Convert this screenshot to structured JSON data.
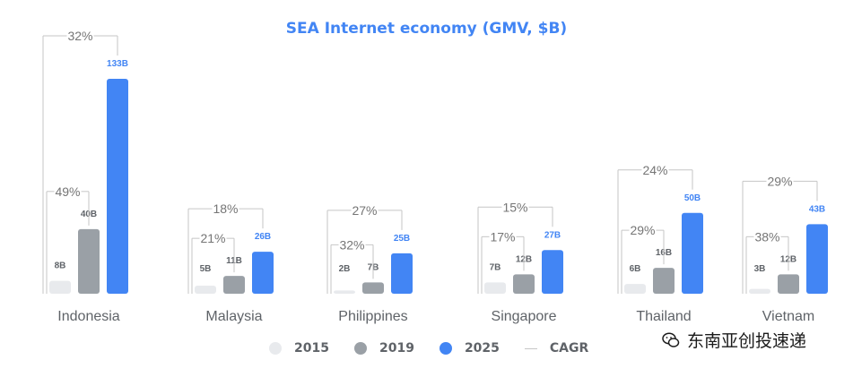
{
  "chart_data": {
    "type": "bar",
    "title": "SEA Internet economy (GMV, $B)",
    "xlabel": "",
    "ylabel": "",
    "ylim": [
      0,
      140
    ],
    "grid": false,
    "legend_position": "bottom",
    "categories": [
      "Indonesia",
      "Malaysia",
      "Philippines",
      "Singapore",
      "Thailand",
      "Vietnam"
    ],
    "series": [
      {
        "name": "2015",
        "values": [
          8,
          5,
          2,
          7,
          6,
          3
        ],
        "labels": [
          "8B",
          "5B",
          "2B",
          "7B",
          "6B",
          "3B"
        ],
        "color": "#e8eaed"
      },
      {
        "name": "2019",
        "values": [
          40,
          11,
          7,
          12,
          16,
          12
        ],
        "labels": [
          "40B",
          "11B",
          "7B",
          "12B",
          "16B",
          "12B"
        ],
        "color": "#9aa0a6"
      },
      {
        "name": "2025",
        "values": [
          133,
          26,
          25,
          27,
          50,
          43
        ],
        "labels": [
          "133B",
          "26B",
          "25B",
          "27B",
          "50B",
          "43B"
        ],
        "color": "#4285f4"
      }
    ],
    "cagr": {
      "name": "CAGR",
      "2015_2019": [
        "49%",
        "21%",
        "32%",
        "17%",
        "29%",
        "38%"
      ],
      "2015_2025": [
        "32%",
        "18%",
        "27%",
        "15%",
        "24%",
        "29%"
      ]
    },
    "colors": {
      "title": "#4285f4",
      "category_label": "#5f6368",
      "cagr_label": "#757575",
      "bracket": "#c6c6c6",
      "label_2015_2019": "#5f6368",
      "label_2025": "#4285f4"
    }
  },
  "legend": {
    "items": [
      {
        "label": "2015",
        "color": "#e8eaed",
        "kind": "dot"
      },
      {
        "label": "2019",
        "color": "#9aa0a6",
        "kind": "dot"
      },
      {
        "label": "2025",
        "color": "#4285f4",
        "kind": "dot"
      },
      {
        "label": "CAGR",
        "color": "#c6c6c6",
        "kind": "line"
      }
    ]
  },
  "watermark": {
    "text": "东南亚创投速递",
    "icon": "wechat-icon"
  }
}
